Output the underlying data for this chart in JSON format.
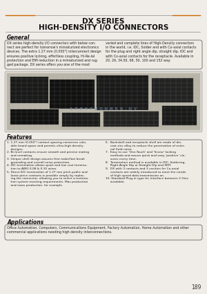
{
  "title_line1": "DX SERIES",
  "title_line2": "HIGH-DENSITY I/O CONNECTORS",
  "general_title": "General",
  "general_text": "DX series high-density I/O connectors with below con-  varied and complete lines of High-Density connectors\nnect are perfect for tomorrow's miniaturized electronics  in the world, i.e. IDC, Solder and with Co-axial contacts\ndevices. The extra 1.27 mm (0.050\") interconnect design  for the plug and right angle dip, straight dip, IDC and\nensures positive locking, effortless coupling, Hi-Re-Ial  with Co-axial contacts for the receptacle. Available in\nprotection and EMI reduction in a miniaturized and rug-  20, 26, 34,50, 68, 50, 100 and 152 way.\nged package. DX series offers you one of the most",
  "features_title": "Features",
  "feat_left": "1. 1.27 mm (0.050\") contact spacing conserves valu-\n    able board space and permits ultra-high density\n    designs.\n2. Bi-level contacts ensure smooth and precise mating\n    and unmating.\n3. Unique shell design assures first make/last break\n    grounding and overall noise protection.\n4. IDC termination allows quick and low cost termina-\n    tion to AWG 0.08 & 0.35 wires.\n5. Direct IDC termination of 1.27 mm pitch public and\n    loose piece contacts is possible simply by replac-\n    ing the connector, allowing you to select a termina-\n    tion system meeting requirements. Mas production\n    and mass production, for example.",
  "feat_right": "6.  Backshell and receptacle shell are made of die-\n     cast zinc alloy to reduce the penetration of exter-\n     nal field noise.\n7.  Easy to use 'One-Touch' and 'Screw' locking\n     methods and assure quick and easy 'positive' clo-\n     sures every time.\n8.  Termination method is available in IDC, Soldering,\n     Right Angle Dip or Straight Dip and SMT.\n9.  DX with 3 contacts and 3 cavities for Co-axial\n     contacts are widely introduced to meet the needs\n     of high speed data transmission on.\n10. Standard Plug-in type for interface between 2 Gins\n     available.",
  "applications_title": "Applications",
  "applications_text": "Office Automation, Computers, Communications Equipment, Factory Automation, Home Automation and other\ncommercial applications needing high density interconnections.",
  "page_number": "189",
  "bg_color": "#f0ede8",
  "title_color": "#111111",
  "box_border": "#666666",
  "line_color": "#888888",
  "orange_line": "#cc6600",
  "text_color": "#222222",
  "section_color": "#111111"
}
